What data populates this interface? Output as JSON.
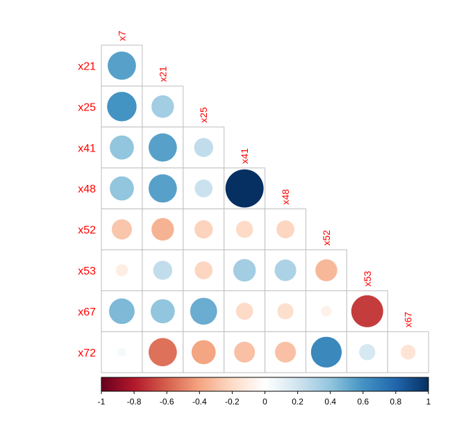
{
  "chart_data": {
    "type": "heatmap",
    "subtype": "correlation-circle-lower-triangle",
    "title": "",
    "row_labels": [
      "x21",
      "x25",
      "x41",
      "x48",
      "x52",
      "x53",
      "x67",
      "x72"
    ],
    "col_labels": [
      "x7",
      "x21",
      "x25",
      "x41",
      "x48",
      "x52",
      "x53",
      "x67"
    ],
    "values": [
      [
        0.55
      ],
      [
        0.6,
        0.35
      ],
      [
        0.4,
        0.55,
        0.25
      ],
      [
        0.4,
        0.55,
        0.22,
        1.0
      ],
      [
        -0.28,
        -0.35,
        -0.23,
        -0.2,
        -0.22
      ],
      [
        -0.1,
        0.25,
        -0.22,
        0.35,
        0.32,
        -0.33
      ],
      [
        0.45,
        0.4,
        0.5,
        -0.2,
        -0.18,
        -0.08,
        -0.7
      ],
      [
        0.05,
        -0.55,
        -0.4,
        -0.3,
        -0.3,
        0.65,
        0.18,
        -0.15
      ]
    ],
    "colorbar": {
      "range": [
        -1,
        1
      ],
      "tick_labels": [
        "-1",
        "-0.8",
        "-0.6",
        "-0.4",
        "-0.2",
        "0",
        "0.2",
        "0.4",
        "0.6",
        "0.8",
        "1"
      ],
      "tick_values": [
        -1,
        -0.8,
        -0.6,
        -0.4,
        -0.2,
        0,
        0.2,
        0.4,
        0.6,
        0.8,
        1
      ],
      "colors": [
        "#67001F",
        "#B2182B",
        "#D6604D",
        "#F4A582",
        "#FDDBC7",
        "#FFFFFF",
        "#D1E5F0",
        "#92C5DE",
        "#4393C3",
        "#2166AC",
        "#053061"
      ]
    },
    "label_color": "#FF0000",
    "grid_color": "#BEBEBE"
  }
}
